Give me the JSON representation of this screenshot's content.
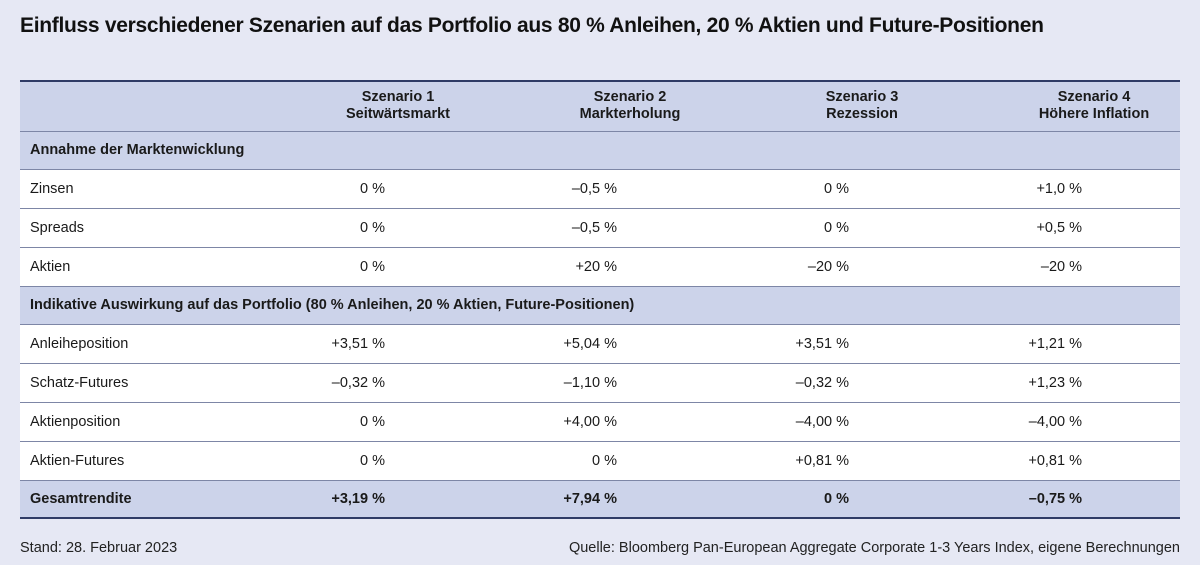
{
  "title": "Einfluss verschiedener Szenarien auf das Portfolio aus 80 % Anleihen, 20 % Aktien und Future-Positionen",
  "columns": [
    {
      "line1": "Szenario 1",
      "line2": "Seitwärtsmarkt"
    },
    {
      "line1": "Szenario 2",
      "line2": "Markterholung"
    },
    {
      "line1": "Szenario 3",
      "line2": "Rezession"
    },
    {
      "line1": "Szenario 4",
      "line2": "Höhere Inflation"
    }
  ],
  "sections": [
    {
      "heading": "Annahme der Marktenwicklung",
      "rows": [
        {
          "label": "Zinsen",
          "values": [
            "0 %",
            "–0,5 %",
            "0 %",
            "+1,0 %"
          ]
        },
        {
          "label": "Spreads",
          "values": [
            "0 %",
            "–0,5 %",
            "0 %",
            "+0,5 %"
          ]
        },
        {
          "label": "Aktien",
          "values": [
            "0 %",
            "+20 %",
            "–20 %",
            "–20 %"
          ]
        }
      ]
    },
    {
      "heading": "Indikative Auswirkung auf das Portfolio (80 % Anleihen, 20 % Aktien, Future-Positionen)",
      "rows": [
        {
          "label": "Anleiheposition",
          "values": [
            "+3,51 %",
            "+5,04 %",
            "+3,51 %",
            "+1,21 %"
          ]
        },
        {
          "label": "Schatz-Futures",
          "values": [
            "–0,32 %",
            "–1,10 %",
            "–0,32 %",
            "+1,23 %"
          ]
        },
        {
          "label": "Aktienposition",
          "values": [
            "0 %",
            "+4,00 %",
            "–4,00 %",
            "–4,00 %"
          ]
        },
        {
          "label": "Aktien-Futures",
          "values": [
            "0 %",
            "0 %",
            "+0,81 %",
            "+0,81 %"
          ]
        }
      ]
    }
  ],
  "total": {
    "label": "Gesamtrendite",
    "values": [
      "+3,19 %",
      "+7,94 %",
      "0 %",
      "–0,75 %"
    ]
  },
  "footer": {
    "left": "Stand: 28. Februar 2023",
    "right": "Quelle: Bloomberg Pan-European Aggregate Corporate 1-3 Years Index, eigene Berechnungen"
  }
}
